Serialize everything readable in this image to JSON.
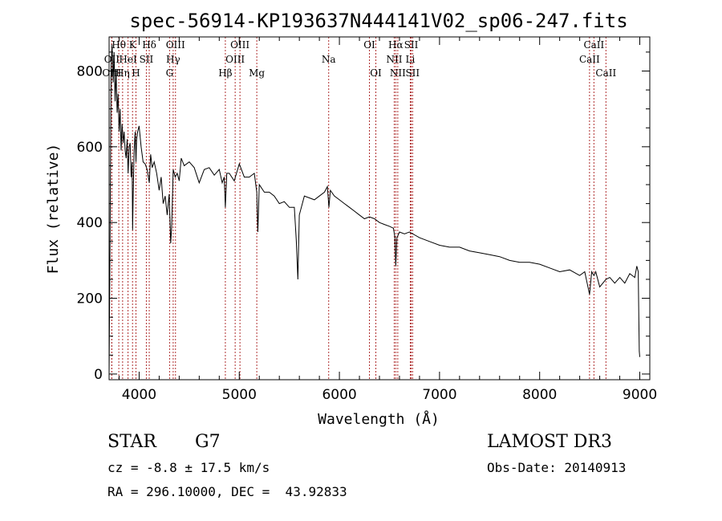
{
  "chart_data": {
    "type": "line",
    "title": "spec-56914-KP193637N444141V02_sp06-247.fits",
    "xlabel": "Wavelength (Å)",
    "ylabel": "Flux (relative)",
    "xlim": [
      3700,
      9100
    ],
    "ylim": [
      -15,
      890
    ],
    "xticks": [
      4000,
      5000,
      6000,
      7000,
      8000,
      9000
    ],
    "yticks": [
      0,
      200,
      400,
      600,
      800
    ],
    "series": [
      {
        "name": "spectrum",
        "x": [
          3700,
          3710,
          3720,
          3730,
          3740,
          3750,
          3760,
          3770,
          3780,
          3790,
          3800,
          3810,
          3820,
          3830,
          3840,
          3850,
          3860,
          3870,
          3880,
          3890,
          3900,
          3910,
          3920,
          3930,
          3935,
          3940,
          3950,
          3960,
          3968,
          3975,
          3985,
          4000,
          4020,
          4040,
          4060,
          4080,
          4101,
          4115,
          4130,
          4150,
          4175,
          4200,
          4220,
          4240,
          4260,
          4280,
          4300,
          4315,
          4325,
          4340,
          4360,
          4380,
          4400,
          4420,
          4450,
          4500,
          4550,
          4600,
          4650,
          4700,
          4750,
          4800,
          4830,
          4850,
          4861,
          4875,
          4900,
          4950,
          5000,
          5050,
          5100,
          5150,
          5175,
          5185,
          5200,
          5250,
          5300,
          5350,
          5400,
          5450,
          5500,
          5550,
          5570,
          5585,
          5600,
          5650,
          5700,
          5750,
          5800,
          5850,
          5880,
          5895,
          5910,
          5950,
          6000,
          6050,
          6100,
          6150,
          6200,
          6250,
          6300,
          6350,
          6400,
          6450,
          6500,
          6540,
          6555,
          6563,
          6575,
          6600,
          6650,
          6700,
          6800,
          6900,
          7000,
          7100,
          7200,
          7300,
          7400,
          7500,
          7600,
          7700,
          7800,
          7900,
          8000,
          8100,
          8200,
          8300,
          8400,
          8450,
          8498,
          8520,
          8542,
          8560,
          8600,
          8662,
          8700,
          8750,
          8800,
          8850,
          8900,
          8950,
          8970,
          8985,
          8990,
          8995,
          9000
        ],
        "flux": [
          0,
          360,
          810,
          870,
          770,
          850,
          720,
          800,
          690,
          740,
          640,
          700,
          590,
          660,
          610,
          640,
          590,
          570,
          620,
          530,
          600,
          610,
          520,
          560,
          380,
          470,
          590,
          640,
          560,
          620,
          640,
          655,
          600,
          560,
          555,
          540,
          505,
          580,
          545,
          560,
          530,
          485,
          520,
          450,
          470,
          420,
          475,
          345,
          390,
          540,
          520,
          530,
          510,
          570,
          550,
          560,
          545,
          505,
          540,
          545,
          525,
          540,
          505,
          520,
          440,
          530,
          530,
          510,
          555,
          520,
          520,
          530,
          480,
          375,
          500,
          480,
          480,
          470,
          450,
          455,
          440,
          440,
          350,
          250,
          420,
          470,
          465,
          460,
          470,
          480,
          495,
          440,
          485,
          470,
          460,
          450,
          440,
          430,
          420,
          410,
          415,
          410,
          400,
          395,
          390,
          385,
          360,
          285,
          360,
          375,
          370,
          375,
          360,
          350,
          340,
          335,
          335,
          325,
          320,
          315,
          310,
          300,
          295,
          295,
          290,
          280,
          270,
          275,
          260,
          270,
          210,
          270,
          260,
          270,
          230,
          250,
          255,
          240,
          255,
          240,
          265,
          255,
          285,
          270,
          150,
          60,
          45
        ]
      }
    ],
    "lines": [
      {
        "label": "Hθ",
        "wl": 3797,
        "row": 0
      },
      {
        "label": "K",
        "wl": 3934,
        "row": 0
      },
      {
        "label": "Hδ",
        "wl": 4101,
        "row": 0
      },
      {
        "label": "OIII",
        "wl": 4363,
        "row": 0
      },
      {
        "label": "OIII",
        "wl": 5007,
        "row": 0
      },
      {
        "label": "OI",
        "wl": 6300,
        "row": 0
      },
      {
        "label": "Hα",
        "wl": 6563,
        "row": 0
      },
      {
        "label": "SII",
        "wl": 6717,
        "row": 0
      },
      {
        "label": "CaII",
        "wl": 8542,
        "row": 0
      },
      {
        "label": "OII",
        "wl": 3727,
        "row": 1
      },
      {
        "label": "HeI",
        "wl": 3889,
        "row": 1
      },
      {
        "label": "SII",
        "wl": 4072,
        "row": 1
      },
      {
        "label": "Hγ",
        "wl": 4340,
        "row": 1
      },
      {
        "label": "OIII",
        "wl": 4959,
        "row": 1
      },
      {
        "label": "Na",
        "wl": 5893,
        "row": 1
      },
      {
        "label": "NII",
        "wl": 6548,
        "row": 1
      },
      {
        "label": "Li",
        "wl": 6708,
        "row": 1
      },
      {
        "label": "CaII",
        "wl": 8498,
        "row": 1
      },
      {
        "label": "OIII",
        "wl": 3727,
        "row": 2
      },
      {
        "label": "Hη",
        "wl": 3835,
        "row": 2
      },
      {
        "label": "H",
        "wl": 3968,
        "row": 2
      },
      {
        "label": "G",
        "wl": 4304,
        "row": 2
      },
      {
        "label": "Hβ",
        "wl": 4861,
        "row": 2
      },
      {
        "label": "Mg",
        "wl": 5175,
        "row": 2
      },
      {
        "label": "OI",
        "wl": 6364,
        "row": 2
      },
      {
        "label": "NII",
        "wl": 6583,
        "row": 2
      },
      {
        "label": "SII",
        "wl": 6731,
        "row": 2
      },
      {
        "label": "CaII",
        "wl": 8662,
        "row": 2
      }
    ]
  },
  "info": {
    "class": "STAR",
    "subclass": "G7",
    "survey": "LAMOST DR3",
    "cz": "cz = -8.8 ± 17.5 km/s",
    "obsdate": "Obs-Date: 20140913",
    "radec": "RA = 296.10000, DEC =  43.92833"
  },
  "colors": {
    "line_marker": "#b03030",
    "spectrum": "#000000"
  }
}
